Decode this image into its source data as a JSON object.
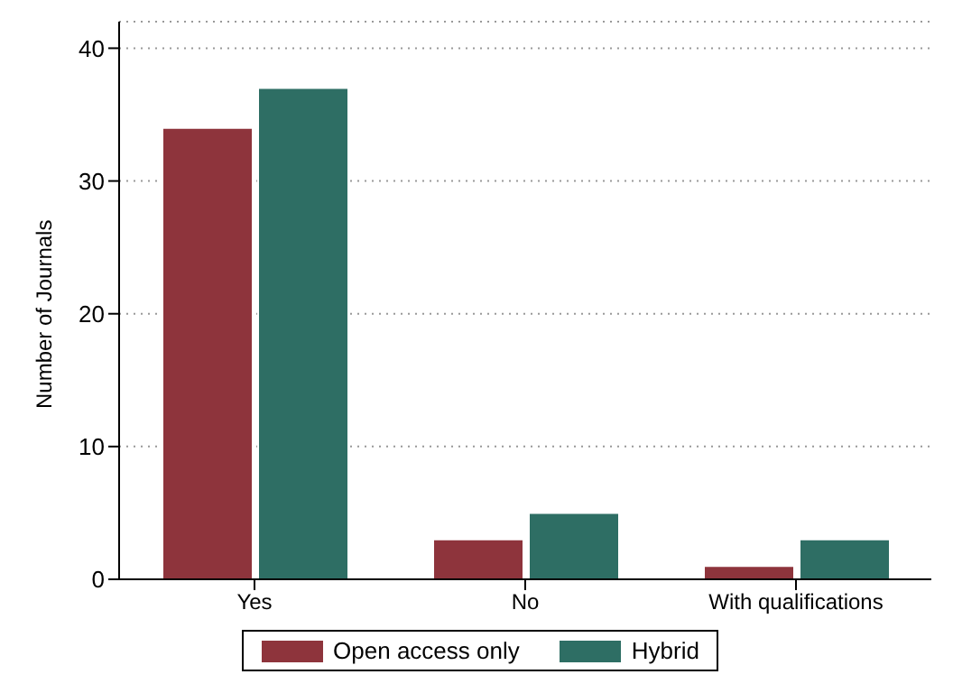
{
  "chart_data": {
    "type": "bar",
    "ylabel": "Number of Journals",
    "categories": [
      "Yes",
      "No",
      "With qualifications"
    ],
    "series": [
      {
        "name": "Open access only",
        "color": "#8e343c",
        "values": [
          34,
          3,
          1
        ]
      },
      {
        "name": "Hybrid",
        "color": "#2e6e64",
        "values": [
          37,
          5,
          3
        ]
      }
    ],
    "ylim": [
      0,
      42
    ],
    "yticks": [
      0,
      10,
      20,
      30,
      40
    ],
    "grid": "y",
    "legend": "bottom"
  }
}
